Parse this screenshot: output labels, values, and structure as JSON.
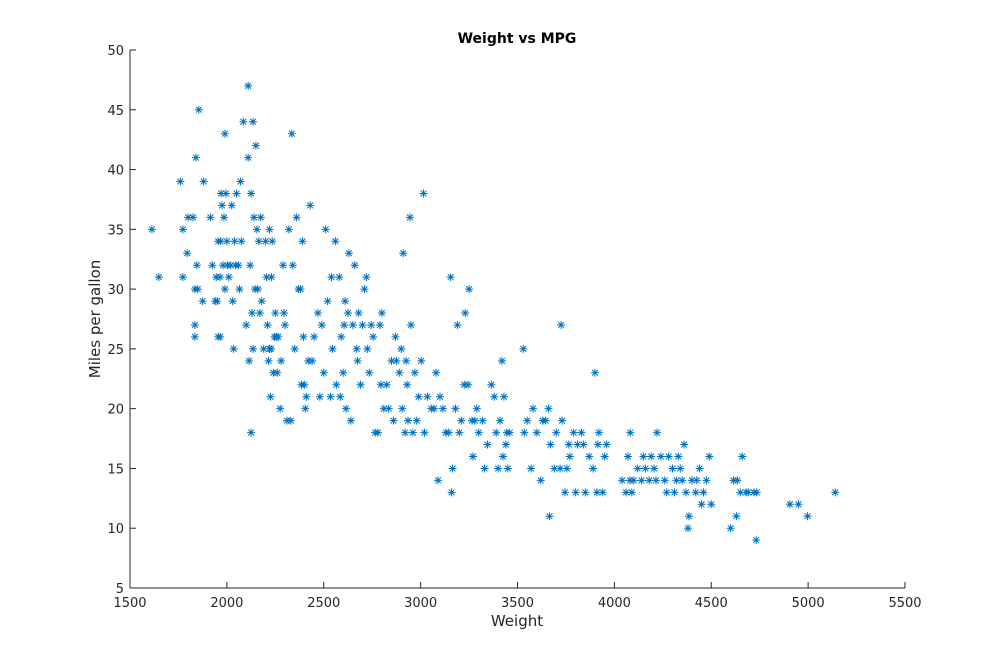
{
  "chart_data": {
    "type": "scatter",
    "title": "Weight vs MPG",
    "xlabel": "Weight",
    "ylabel": "Miles per gallon",
    "xlim": [
      1500,
      5500
    ],
    "ylim": [
      5,
      50
    ],
    "xticks": [
      1500,
      2000,
      2500,
      3000,
      3500,
      4000,
      4500,
      5000,
      5500
    ],
    "yticks": [
      5,
      10,
      15,
      20,
      25,
      30,
      35,
      40,
      45,
      50
    ],
    "grid": false,
    "legend": "none",
    "marker": "asterisk",
    "color": "#0072BD",
    "points": [
      [
        1613,
        35
      ],
      [
        1649,
        31
      ],
      [
        1760,
        39
      ],
      [
        1773,
        35
      ],
      [
        1773,
        31
      ],
      [
        1795,
        33
      ],
      [
        1800,
        36
      ],
      [
        1825,
        36
      ],
      [
        1835,
        30
      ],
      [
        1835,
        27
      ],
      [
        1835,
        26
      ],
      [
        1840,
        41
      ],
      [
        1845,
        32
      ],
      [
        1850,
        30
      ],
      [
        1855,
        45
      ],
      [
        1875,
        29
      ],
      [
        1880,
        39
      ],
      [
        1915,
        36
      ],
      [
        1925,
        32
      ],
      [
        1940,
        29
      ],
      [
        1945,
        31
      ],
      [
        1950,
        29
      ],
      [
        1955,
        34
      ],
      [
        1955,
        26
      ],
      [
        1965,
        26
      ],
      [
        1965,
        31
      ],
      [
        1968,
        34
      ],
      [
        1970,
        38
      ],
      [
        1975,
        37
      ],
      [
        1980,
        32
      ],
      [
        1985,
        36
      ],
      [
        1990,
        43
      ],
      [
        1990,
        30
      ],
      [
        1995,
        38
      ],
      [
        2000,
        34
      ],
      [
        2003,
        32
      ],
      [
        2010,
        31
      ],
      [
        2020,
        32
      ],
      [
        2025,
        37
      ],
      [
        2030,
        29
      ],
      [
        2035,
        25
      ],
      [
        2040,
        34
      ],
      [
        2045,
        32
      ],
      [
        2050,
        38
      ],
      [
        2060,
        32
      ],
      [
        2065,
        30
      ],
      [
        2070,
        39
      ],
      [
        2075,
        34
      ],
      [
        2085,
        44
      ],
      [
        2100,
        27
      ],
      [
        2110,
        41
      ],
      [
        2110,
        47
      ],
      [
        2115,
        24
      ],
      [
        2120,
        32
      ],
      [
        2125,
        38
      ],
      [
        2125,
        18
      ],
      [
        2130,
        28
      ],
      [
        2135,
        25
      ],
      [
        2135,
        44
      ],
      [
        2140,
        36
      ],
      [
        2145,
        30
      ],
      [
        2150,
        42
      ],
      [
        2155,
        35
      ],
      [
        2160,
        30
      ],
      [
        2165,
        34
      ],
      [
        2170,
        28
      ],
      [
        2175,
        36
      ],
      [
        2180,
        29
      ],
      [
        2190,
        25
      ],
      [
        2200,
        34
      ],
      [
        2205,
        31
      ],
      [
        2210,
        27
      ],
      [
        2215,
        24
      ],
      [
        2220,
        35
      ],
      [
        2220,
        25
      ],
      [
        2225,
        21
      ],
      [
        2228,
        25
      ],
      [
        2230,
        31
      ],
      [
        2234,
        34
      ],
      [
        2240,
        23
      ],
      [
        2246,
        26
      ],
      [
        2250,
        28
      ],
      [
        2255,
        26
      ],
      [
        2260,
        23
      ],
      [
        2265,
        26
      ],
      [
        2275,
        20
      ],
      [
        2280,
        24
      ],
      [
        2290,
        32
      ],
      [
        2295,
        28
      ],
      [
        2300,
        27
      ],
      [
        2310,
        19
      ],
      [
        2320,
        35
      ],
      [
        2330,
        19
      ],
      [
        2335,
        43
      ],
      [
        2340,
        32
      ],
      [
        2350,
        25
      ],
      [
        2360,
        36
      ],
      [
        2370,
        30
      ],
      [
        2380,
        30
      ],
      [
        2385,
        22
      ],
      [
        2390,
        34
      ],
      [
        2395,
        26
      ],
      [
        2400,
        22
      ],
      [
        2405,
        20
      ],
      [
        2410,
        21
      ],
      [
        2420,
        24
      ],
      [
        2430,
        37
      ],
      [
        2440,
        24
      ],
      [
        2450,
        26
      ],
      [
        2470,
        28
      ],
      [
        2480,
        21
      ],
      [
        2490,
        27
      ],
      [
        2500,
        23
      ],
      [
        2510,
        35
      ],
      [
        2520,
        29
      ],
      [
        2535,
        21
      ],
      [
        2540,
        31
      ],
      [
        2545,
        25
      ],
      [
        2560,
        34
      ],
      [
        2565,
        22
      ],
      [
        2580,
        31
      ],
      [
        2585,
        21
      ],
      [
        2590,
        26
      ],
      [
        2600,
        23
      ],
      [
        2605,
        27
      ],
      [
        2610,
        29
      ],
      [
        2615,
        20
      ],
      [
        2625,
        28
      ],
      [
        2630,
        33
      ],
      [
        2640,
        19
      ],
      [
        2650,
        27
      ],
      [
        2660,
        32
      ],
      [
        2670,
        25
      ],
      [
        2675,
        24
      ],
      [
        2680,
        28
      ],
      [
        2690,
        22
      ],
      [
        2700,
        27
      ],
      [
        2710,
        30
      ],
      [
        2720,
        31
      ],
      [
        2725,
        25
      ],
      [
        2735,
        23
      ],
      [
        2745,
        27
      ],
      [
        2755,
        26
      ],
      [
        2765,
        18
      ],
      [
        2780,
        18
      ],
      [
        2790,
        27
      ],
      [
        2795,
        22
      ],
      [
        2800,
        28
      ],
      [
        2810,
        20
      ],
      [
        2825,
        22
      ],
      [
        2835,
        20
      ],
      [
        2850,
        24
      ],
      [
        2860,
        19
      ],
      [
        2870,
        26
      ],
      [
        2875,
        24
      ],
      [
        2890,
        23
      ],
      [
        2900,
        25
      ],
      [
        2905,
        20
      ],
      [
        2910,
        33
      ],
      [
        2920,
        18
      ],
      [
        2925,
        24
      ],
      [
        2930,
        22
      ],
      [
        2935,
        19
      ],
      [
        2945,
        36
      ],
      [
        2950,
        27
      ],
      [
        2960,
        18
      ],
      [
        2970,
        23
      ],
      [
        2980,
        19
      ],
      [
        2990,
        21
      ],
      [
        3003,
        24
      ],
      [
        3015,
        38
      ],
      [
        3020,
        18
      ],
      [
        3035,
        21
      ],
      [
        3055,
        20
      ],
      [
        3070,
        20
      ],
      [
        3080,
        23
      ],
      [
        3090,
        14
      ],
      [
        3100,
        21
      ],
      [
        3115,
        20
      ],
      [
        3130,
        18
      ],
      [
        3145,
        18
      ],
      [
        3155,
        31
      ],
      [
        3160,
        13
      ],
      [
        3165,
        15
      ],
      [
        3180,
        20
      ],
      [
        3190,
        27
      ],
      [
        3200,
        18
      ],
      [
        3210,
        19
      ],
      [
        3225,
        22
      ],
      [
        3230,
        28
      ],
      [
        3245,
        22
      ],
      [
        3250,
        30
      ],
      [
        3265,
        19
      ],
      [
        3270,
        16
      ],
      [
        3280,
        19
      ],
      [
        3290,
        20
      ],
      [
        3300,
        18
      ],
      [
        3320,
        19
      ],
      [
        3330,
        15
      ],
      [
        3345,
        17
      ],
      [
        3365,
        22
      ],
      [
        3380,
        21
      ],
      [
        3390,
        18
      ],
      [
        3400,
        15
      ],
      [
        3410,
        19
      ],
      [
        3420,
        24
      ],
      [
        3425,
        16
      ],
      [
        3430,
        21
      ],
      [
        3440,
        17
      ],
      [
        3445,
        18
      ],
      [
        3450,
        15
      ],
      [
        3460,
        18
      ],
      [
        3530,
        25
      ],
      [
        3535,
        18
      ],
      [
        3550,
        19
      ],
      [
        3570,
        15
      ],
      [
        3580,
        20
      ],
      [
        3600,
        18
      ],
      [
        3620,
        14
      ],
      [
        3630,
        19
      ],
      [
        3645,
        19
      ],
      [
        3660,
        20
      ],
      [
        3665,
        11
      ],
      [
        3670,
        17
      ],
      [
        3690,
        15
      ],
      [
        3700,
        18
      ],
      [
        3720,
        15
      ],
      [
        3725,
        27
      ],
      [
        3730,
        19
      ],
      [
        3745,
        13
      ],
      [
        3755,
        15
      ],
      [
        3765,
        17
      ],
      [
        3770,
        16
      ],
      [
        3790,
        18
      ],
      [
        3800,
        13
      ],
      [
        3810,
        17
      ],
      [
        3830,
        18
      ],
      [
        3840,
        17
      ],
      [
        3850,
        13
      ],
      [
        3870,
        16
      ],
      [
        3890,
        15
      ],
      [
        3900,
        23
      ],
      [
        3910,
        13
      ],
      [
        3915,
        17
      ],
      [
        3920,
        18
      ],
      [
        3940,
        13
      ],
      [
        3950,
        16
      ],
      [
        3960,
        17
      ],
      [
        4040,
        14
      ],
      [
        4060,
        13
      ],
      [
        4070,
        16
      ],
      [
        4080,
        14
      ],
      [
        4082,
        18
      ],
      [
        4090,
        13
      ],
      [
        4100,
        14
      ],
      [
        4120,
        15
      ],
      [
        4140,
        14
      ],
      [
        4150,
        16
      ],
      [
        4160,
        15
      ],
      [
        4180,
        14
      ],
      [
        4190,
        16
      ],
      [
        4205,
        15
      ],
      [
        4215,
        14
      ],
      [
        4220,
        18
      ],
      [
        4240,
        16
      ],
      [
        4260,
        14
      ],
      [
        4270,
        13
      ],
      [
        4280,
        16
      ],
      [
        4300,
        15
      ],
      [
        4310,
        13
      ],
      [
        4320,
        14
      ],
      [
        4330,
        16
      ],
      [
        4340,
        15
      ],
      [
        4350,
        14
      ],
      [
        4360,
        17
      ],
      [
        4370,
        13
      ],
      [
        4380,
        10
      ],
      [
        4385,
        11
      ],
      [
        4400,
        14
      ],
      [
        4420,
        13
      ],
      [
        4425,
        14
      ],
      [
        4440,
        15
      ],
      [
        4450,
        12
      ],
      [
        4460,
        13
      ],
      [
        4475,
        14
      ],
      [
        4490,
        16
      ],
      [
        4500,
        12
      ],
      [
        4600,
        10
      ],
      [
        4615,
        14
      ],
      [
        4630,
        11
      ],
      [
        4635,
        14
      ],
      [
        4650,
        13
      ],
      [
        4660,
        16
      ],
      [
        4680,
        13
      ],
      [
        4690,
        13
      ],
      [
        4720,
        13
      ],
      [
        4732,
        9
      ],
      [
        4735,
        13
      ],
      [
        4906,
        12
      ],
      [
        4950,
        12
      ],
      [
        4997,
        11
      ],
      [
        5140,
        13
      ]
    ]
  }
}
